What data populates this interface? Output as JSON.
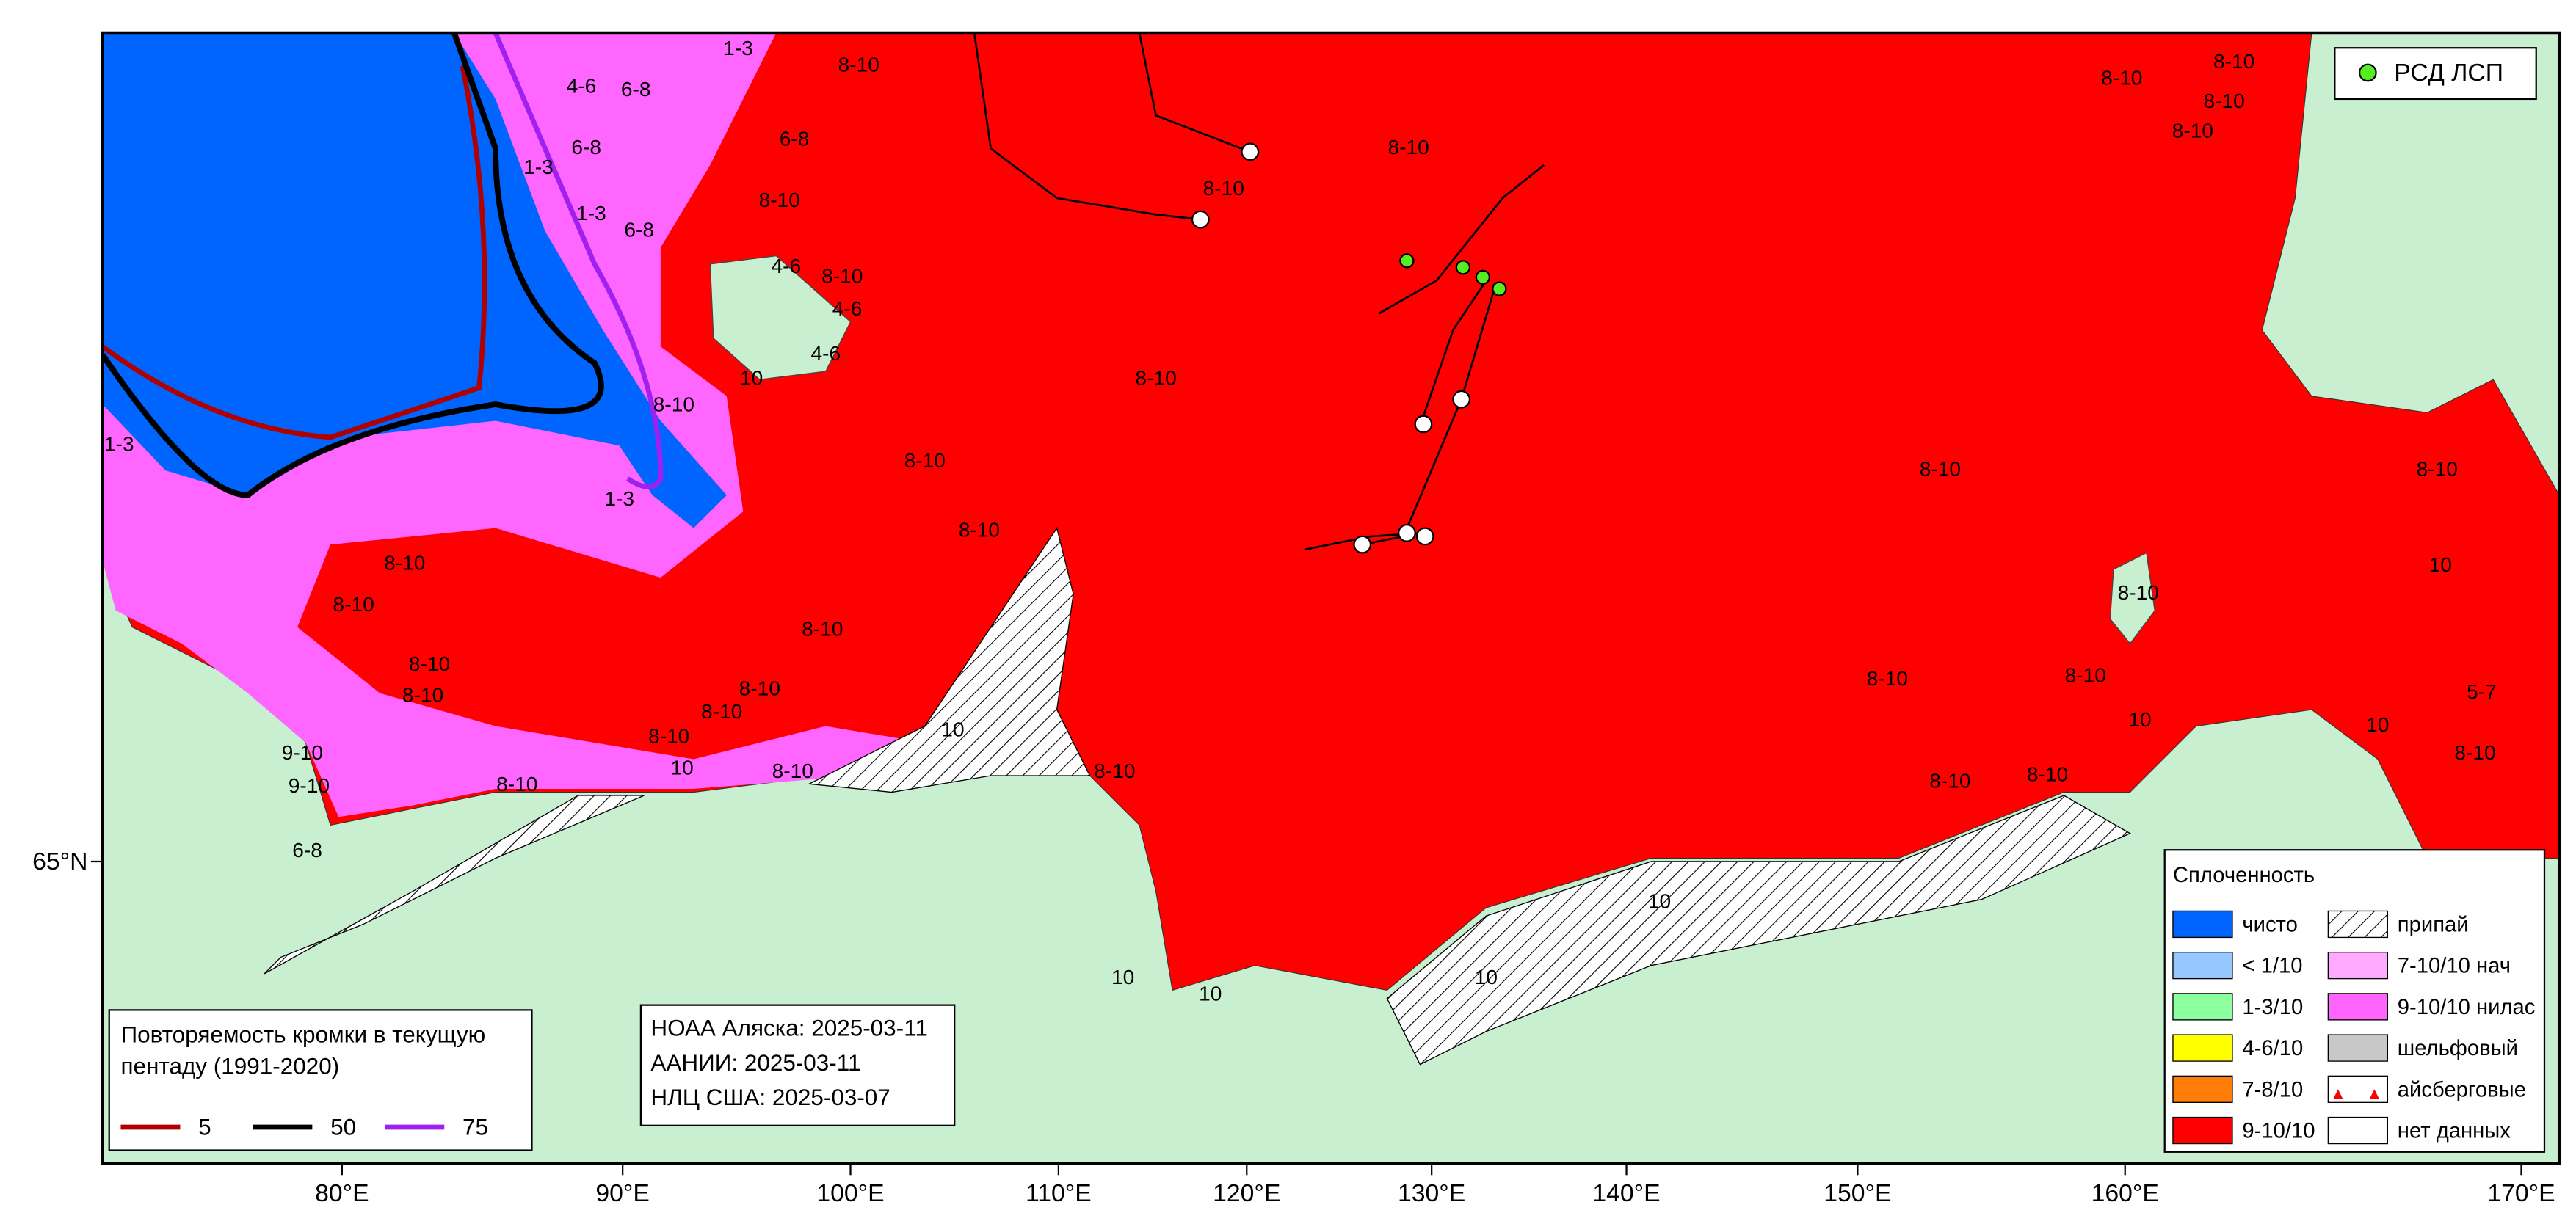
{
  "map": {
    "x_labels": [
      "80°E",
      "90°E",
      "100°E",
      "110°E",
      "120°E",
      "130°E",
      "140°E",
      "150°E",
      "160°E",
      "170°E"
    ],
    "y_labels": [
      "65°N"
    ],
    "ice_labels": [
      "8-10",
      "8-10",
      "8-10",
      "8-10",
      "8-10",
      "8-10",
      "8-10",
      "8-10",
      "8-10",
      "8-10",
      "8-10",
      "8-10",
      "8-10",
      "8-10",
      "8-10",
      "8-10",
      "8-10",
      "8-10",
      "8-10",
      "8-10",
      "8-10",
      "8-10",
      "8-10",
      "8-10",
      "8-10",
      "8-10",
      "8-10",
      "8-10",
      "8-10",
      "8-10",
      "8-10",
      "10",
      "10",
      "10",
      "10",
      "10",
      "10",
      "10",
      "10",
      "10",
      "10",
      "6-8",
      "6-8",
      "6-8",
      "6-8",
      "6-8",
      "1-3",
      "1-3",
      "1-3",
      "1-3",
      "1-3",
      "4-6",
      "4-6",
      "4-6",
      "4-6",
      "9-10",
      "9-10",
      "8-10",
      "5-7"
    ]
  },
  "stations_legend": "РСД ЛСП",
  "sources": [
    "НОАА Аляска: 2025-03-11",
    "ААНИИ: 2025-03-11",
    "НЛЦ США: 2025-03-07"
  ],
  "legend_edge": {
    "title": [
      "Повторяемость кромки в текущую",
      "пентаду (1991-2020)"
    ],
    "items": [
      {
        "label": "5",
        "color": "#b00000"
      },
      {
        "label": "50",
        "color": "#000000"
      },
      {
        "label": "75",
        "color": "#a020f0"
      }
    ]
  },
  "legend_concentration": {
    "title": "Сплоченность",
    "items": [
      {
        "label": "чисто",
        "color": "#0064ff"
      },
      {
        "label": "< 1/10",
        "color": "#96c8ff"
      },
      {
        "label": "1-3/10",
        "color": "#8cff9f"
      },
      {
        "label": "4-6/10",
        "color": "#ffff00"
      },
      {
        "label": "7-8/10",
        "color": "#ff7d07"
      },
      {
        "label": "9-10/10",
        "color": "#ff0000"
      },
      {
        "label": "припай",
        "color": "#ffffff"
      },
      {
        "label": "7-10/10 нач",
        "color": "#ffaaff"
      },
      {
        "label": "9-10/10 нилас",
        "color": "#ff64ff"
      },
      {
        "label": "шельфовый",
        "color": "#c8c8c8"
      },
      {
        "label": "айсберговые",
        "color": "#ffffff"
      },
      {
        "label": "нет данных",
        "color": "#ffffff"
      }
    ]
  }
}
